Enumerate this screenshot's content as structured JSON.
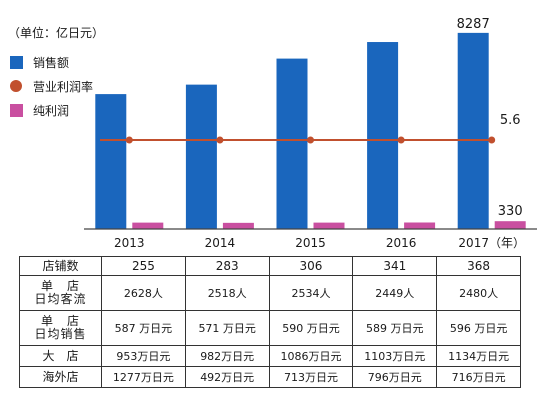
{
  "unit_label": "（单位：亿日元）",
  "legend": [
    {
      "label": "销售额",
      "color": "#1a66bd",
      "shape": "square"
    },
    {
      "label": "营业利润率",
      "color": "#c1502e",
      "shape": "circle"
    },
    {
      "label": "纯利润",
      "color": "#c94fa0",
      "shape": "square"
    }
  ],
  "chart_data": {
    "type": "bar",
    "categories": [
      "2013",
      "2014",
      "2015",
      "2016",
      "2017（年）"
    ],
    "series": [
      {
        "name": "销售额",
        "type": "bar",
        "color": "#1a66bd",
        "values": [
          5700,
          6100,
          7200,
          7900,
          8287
        ]
      },
      {
        "name": "纯利润",
        "type": "bar",
        "color": "#c94fa0",
        "values": [
          270,
          260,
          270,
          275,
          330
        ]
      },
      {
        "name": "营业利润率",
        "type": "line",
        "color": "#c1502e",
        "values": [
          5.6,
          5.6,
          5.6,
          5.6,
          5.6
        ]
      }
    ],
    "data_labels": [
      {
        "series": "销售额",
        "index": 4,
        "text": "8287"
      },
      {
        "series": "纯利润",
        "index": 4,
        "text": "330"
      },
      {
        "series": "营业利润率",
        "index": 4,
        "text": "5.6"
      }
    ],
    "ylim": [
      0,
      9000
    ],
    "grid": false,
    "legend_position": "top-left"
  },
  "table": {
    "rows": [
      {
        "header": "店铺数",
        "values": [
          "255",
          "283",
          "306",
          "341",
          "368"
        ]
      },
      {
        "header": "单　店\n日均客流",
        "values": [
          "2628人",
          "2518人",
          "2534人",
          "2449人",
          "2480人"
        ]
      },
      {
        "header": "单　店\n日均销售",
        "values": [
          "587 万日元",
          "571 万日元",
          "590 万日元",
          "589 万日元",
          "596 万日元"
        ]
      },
      {
        "header": "大　店",
        "values": [
          "953万日元",
          "982万日元",
          "1086万日元",
          "1103万日元",
          "1134万日元"
        ]
      },
      {
        "header": "海外店",
        "values": [
          "1277万日元",
          "492万日元",
          "713万日元",
          "796万日元",
          "716万日元"
        ]
      }
    ]
  }
}
